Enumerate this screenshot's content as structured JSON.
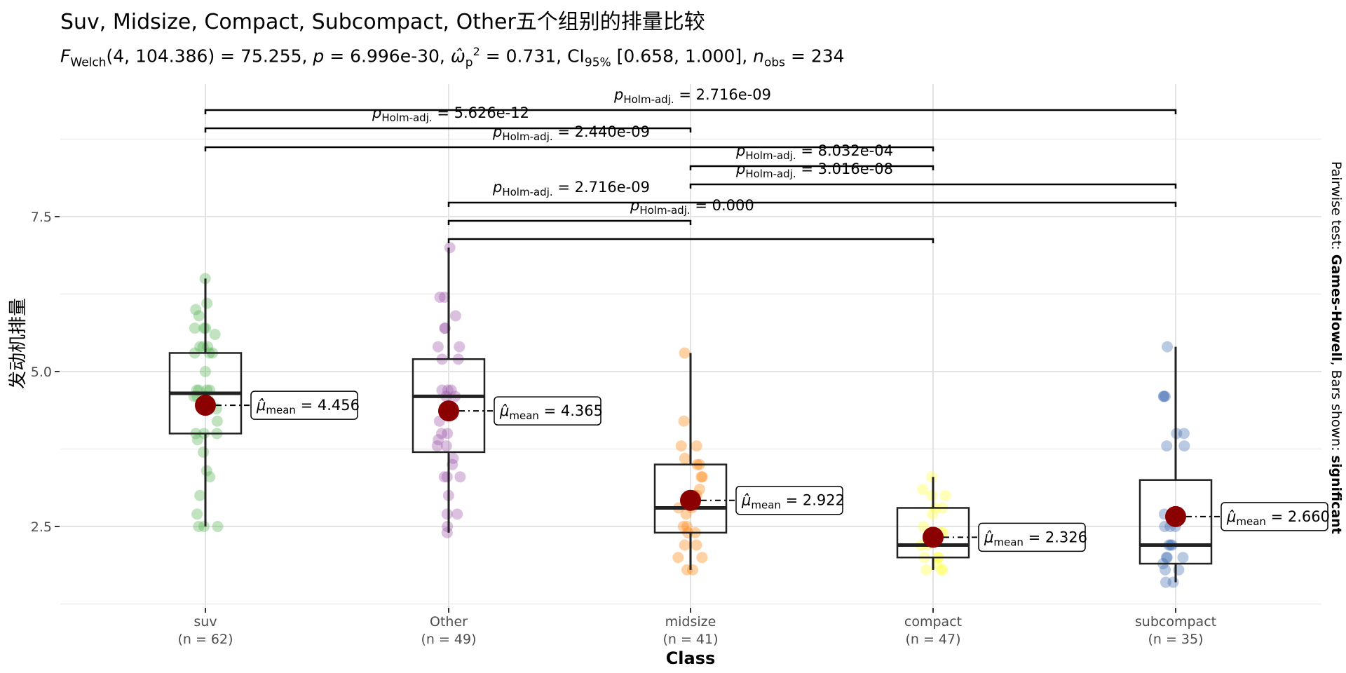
{
  "chart_data": {
    "type": "box",
    "title": "Suv, Midsize, Compact, Subcompact, Other五个组别的排量比较",
    "subtitle": {
      "stat_name": "F",
      "stat_sub": "Welch",
      "stat_args": "(4, 104.386)",
      "stat_value": " = 75.255, ",
      "p_symbol": "p",
      "p_value": " = 6.996e-30, ",
      "effect_symbol": "ω̂",
      "effect_sup": "2",
      "effect_sub": "p",
      "effect_value": " = 0.731, ",
      "ci_name": "CI",
      "ci_sub": "95%",
      "ci_value": " [0.658, 1.000], ",
      "n_symbol": "n",
      "n_sub": "obs",
      "n_value": " = 234"
    },
    "xlabel": "Class",
    "ylabel": "发动机排量",
    "ylim": [
      1.2,
      9.5
    ],
    "y_ticks": [
      2.5,
      5.0,
      7.5
    ],
    "y_tick_labels": [
      "2.5",
      "5.0",
      "7.5"
    ],
    "grid": true,
    "side_caption": {
      "prefix": "Pairwise test: ",
      "test": "Games-Howell",
      "middle": ", Bars shown: ",
      "bars": "significant"
    },
    "mean_label_prefix": "μ̂",
    "mean_label_sub": "mean",
    "groups": [
      {
        "name": "suv",
        "n_label": "(n = 62)",
        "color": "#4daf4a",
        "q1": 4.0,
        "median": 4.65,
        "q3": 5.3,
        "whisker_low": 2.5,
        "whisker_high": 6.5,
        "mean": 4.456,
        "mean_label": " = 4.456",
        "points": [
          6.5,
          6.1,
          6.0,
          5.9,
          5.7,
          5.7,
          5.7,
          5.6,
          5.4,
          5.4,
          5.4,
          5.3,
          5.3,
          5.3,
          5.0,
          4.7,
          4.7,
          4.7,
          4.7,
          4.6,
          4.6,
          4.6,
          4.4,
          4.2,
          4.0,
          4.0,
          4.0,
          3.9,
          3.7,
          3.4,
          3.3,
          3.0,
          2.7,
          2.5,
          2.5,
          2.5
        ]
      },
      {
        "name": "Other",
        "n_label": "(n = 49)",
        "color": "#984ea3",
        "q1": 3.7,
        "median": 4.6,
        "q3": 5.2,
        "whisker_low": 2.4,
        "whisker_high": 7.0,
        "mean": 4.365,
        "mean_label": " = 4.365",
        "points": [
          7.0,
          6.2,
          6.2,
          5.9,
          5.7,
          5.7,
          5.4,
          5.4,
          5.2,
          5.2,
          4.7,
          4.7,
          4.7,
          4.6,
          4.6,
          4.3,
          4.2,
          4.0,
          4.0,
          3.9,
          3.8,
          3.8,
          3.6,
          3.5,
          3.3,
          3.3,
          3.3,
          3.0,
          2.7,
          2.7,
          2.5,
          2.4
        ]
      },
      {
        "name": "midsize",
        "n_label": "(n = 41)",
        "color": "#ff7f00",
        "q1": 2.4,
        "median": 2.8,
        "q3": 3.5,
        "whisker_low": 1.8,
        "whisker_high": 5.3,
        "mean": 2.922,
        "mean_label": " = 2.922",
        "points": [
          5.3,
          4.2,
          3.8,
          3.8,
          3.6,
          3.5,
          3.5,
          3.3,
          3.3,
          3.1,
          3.0,
          3.0,
          2.8,
          2.8,
          2.7,
          2.5,
          2.5,
          2.4,
          2.4,
          2.2,
          2.2,
          2.0,
          2.0,
          1.8,
          1.8
        ]
      },
      {
        "name": "compact",
        "n_label": "(n = 47)",
        "color": "#ffff33",
        "q1": 2.0,
        "median": 2.2,
        "q3": 2.8,
        "whisker_low": 1.8,
        "whisker_high": 3.3,
        "mean": 2.326,
        "mean_label": " = 2.326",
        "points": [
          3.3,
          3.1,
          3.0,
          3.0,
          2.8,
          2.8,
          2.7,
          2.5,
          2.4,
          2.4,
          2.2,
          2.2,
          2.0,
          2.0,
          2.0,
          1.9,
          1.8,
          1.8,
          1.8
        ]
      },
      {
        "name": "subcompact",
        "n_label": "(n = 35)",
        "color": "#3a66b0",
        "q1": 1.9,
        "median": 2.2,
        "q3": 3.25,
        "whisker_low": 1.6,
        "whisker_high": 5.4,
        "mean": 2.66,
        "mean_label": " = 2.660",
        "points": [
          5.4,
          4.6,
          4.6,
          4.6,
          4.0,
          4.0,
          3.8,
          3.8,
          2.7,
          2.7,
          2.5,
          2.5,
          2.5,
          2.2,
          2.2,
          2.2,
          2.0,
          2.0,
          2.0,
          1.9,
          1.8,
          1.8,
          1.6,
          1.6
        ]
      }
    ],
    "pairwise": [
      {
        "from": "suv",
        "to": "subcompact",
        "p_symbol": "p",
        "p_sub": "Holm-adj.",
        "p_value": " = 2.716e-09"
      },
      {
        "from": "suv",
        "to": "midsize",
        "p_symbol": "p",
        "p_sub": "Holm-adj.",
        "p_value": " = 5.626e-12"
      },
      {
        "from": "suv",
        "to": "compact",
        "p_symbol": "p",
        "p_sub": "Holm-adj.",
        "p_value": " = 2.440e-09"
      },
      {
        "from": "midsize",
        "to": "compact",
        "p_symbol": "p",
        "p_sub": "Holm-adj.",
        "p_value": " = 8.032e-04"
      },
      {
        "from": "midsize",
        "to": "subcompact",
        "p_symbol": "p",
        "p_sub": "Holm-adj.",
        "p_value": " = 3.016e-08"
      },
      {
        "from": "Other",
        "to": "subcompact",
        "p_symbol": "p",
        "p_sub": "Holm-adj.",
        "p_value": " = 2.716e-09"
      },
      {
        "from": "Other",
        "to": "midsize",
        "p_symbol": "p",
        "p_sub": "Holm-adj.",
        "p_value": " = 0.000"
      },
      {
        "from": "Other",
        "to": "compact",
        "p_symbol": "p",
        "p_sub": "Holm-adj.",
        "p_value": ""
      }
    ]
  }
}
